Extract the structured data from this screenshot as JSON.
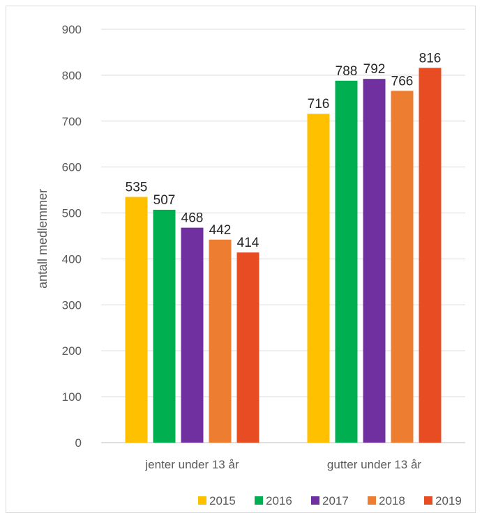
{
  "chart_data": {
    "type": "bar",
    "categories": [
      "jenter under 13 år",
      "gutter under 13 år"
    ],
    "series": [
      {
        "name": "2015",
        "values": [
          535,
          716
        ],
        "color": "#FFC000"
      },
      {
        "name": "2016",
        "values": [
          507,
          788
        ],
        "color": "#00B050"
      },
      {
        "name": "2017",
        "values": [
          468,
          792
        ],
        "color": "#7030A0"
      },
      {
        "name": "2018",
        "values": [
          442,
          766
        ],
        "color": "#ED7D31"
      },
      {
        "name": "2019",
        "values": [
          414,
          816
        ],
        "color": "#E84C22"
      }
    ],
    "ylabel": "antall medlemmer",
    "ylim": [
      0,
      900
    ],
    "yticks": [
      0,
      100,
      200,
      300,
      400,
      500,
      600,
      700,
      800,
      900
    ],
    "grid": true,
    "legend": "bottom-right"
  }
}
